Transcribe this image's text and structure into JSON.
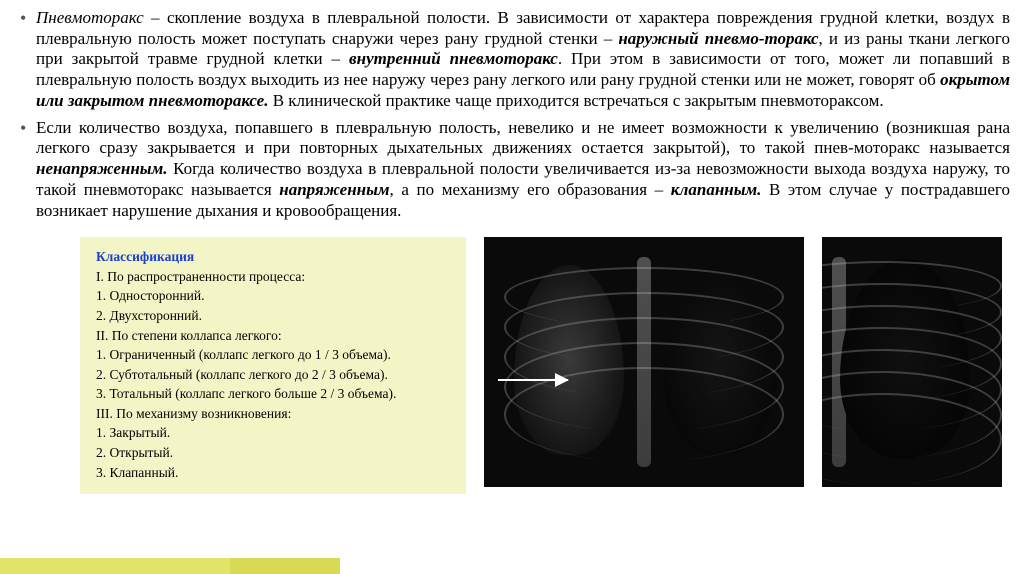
{
  "para1": {
    "r1": "Пневмоторакс",
    "r2": " – скопление воздуха в плевральной полости. В зависимости от характера повреждения грудной клетки, воздух в плевральную полость может поступать снаружи через рану грудной стенки – ",
    "r3": "наружный пневмо-торакс",
    "r4": ", и из раны ткани легкого при закрытой травме грудной клетки – ",
    "r5": "внутренний пневмоторакс",
    "r6": ". При этом в зависимости от того, может ли попавший в плевральную полость воздух выходить из нее наружу через рану легкого или рану грудной стенки или не может, говорят об ",
    "r7": "окрытом или закрытом пневмотораксе.",
    "r8": " В клинической практике чаще приходится встречаться с закрытым пневмотораксом."
  },
  "para2": {
    "r1": "Если количество воздуха, попавшего в плевральную полость, невелико и не имеет возможности к увеличению (возникшая рана легкого сразу закрывается и при повторных дыхательных движениях остается закрытой), то такой пнев-моторакс называется ",
    "r2": "ненапряженным.",
    "r3": " Когда количество воздуха в плевральной полости увеличивается из-за невозможности выхода воздуха наружу, то такой пневмоторакс называется ",
    "r4": "напряженным",
    "r5": ", а по механизму его образования – ",
    "r6": "клапанным.",
    "r7": " В этом случае у пострадавшего возникает нарушение дыхания и кровообращения."
  },
  "classification": {
    "title": "Классификация",
    "lines": [
      "I. По распространенности процесса:",
      "1. Односторонний.",
      "2. Двухсторонний.",
      "II. По степени коллапса легкого:",
      "1. Ограниченный (коллапс легкого до 1 / 3 объема).",
      "2. Субтотальный (коллапс легкого до 2 / 3 объема).",
      "3. Тотальный (коллапс легкого больше 2 / 3 объема).",
      "III. По механизму возникновения:",
      "1. Закрытый.",
      "2. Открытый.",
      "3. Клапанный."
    ]
  },
  "colors": {
    "box_bg": "#f4f5c6",
    "title_color": "#1a3fd1",
    "footer1": "#e2e46a",
    "footer2": "#d8da55"
  }
}
